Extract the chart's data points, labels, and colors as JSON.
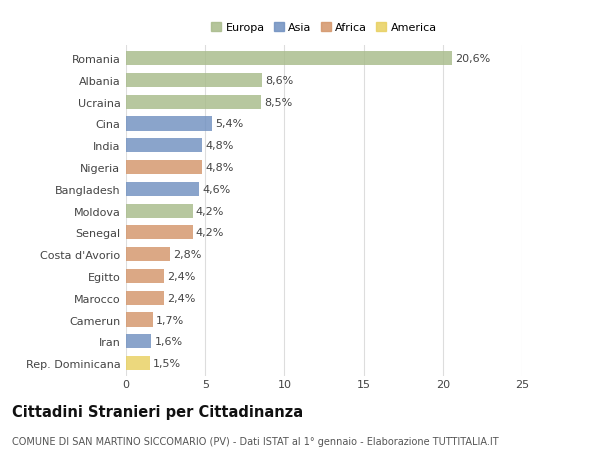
{
  "countries": [
    "Romania",
    "Albania",
    "Ucraina",
    "Cina",
    "India",
    "Nigeria",
    "Bangladesh",
    "Moldova",
    "Senegal",
    "Costa d'Avorio",
    "Egitto",
    "Marocco",
    "Camerun",
    "Iran",
    "Rep. Dominicana"
  ],
  "values": [
    20.6,
    8.6,
    8.5,
    5.4,
    4.8,
    4.8,
    4.6,
    4.2,
    4.2,
    2.8,
    2.4,
    2.4,
    1.7,
    1.6,
    1.5
  ],
  "labels": [
    "20,6%",
    "8,6%",
    "8,5%",
    "5,4%",
    "4,8%",
    "4,8%",
    "4,6%",
    "4,2%",
    "4,2%",
    "2,8%",
    "2,4%",
    "2,4%",
    "1,7%",
    "1,6%",
    "1,5%"
  ],
  "categories": [
    "Europa",
    "Europa",
    "Europa",
    "Asia",
    "Asia",
    "Africa",
    "Asia",
    "Europa",
    "Africa",
    "Africa",
    "Africa",
    "Africa",
    "Africa",
    "Asia",
    "America"
  ],
  "colors": {
    "Europa": "#a8bb8a",
    "Asia": "#7090c0",
    "Africa": "#d4956a",
    "America": "#e8d060"
  },
  "legend_order": [
    "Europa",
    "Asia",
    "Africa",
    "America"
  ],
  "title": "Cittadini Stranieri per Cittadinanza",
  "subtitle": "COMUNE DI SAN MARTINO SICCOMARIO (PV) - Dati ISTAT al 1° gennaio - Elaborazione TUTTITALIA.IT",
  "xlim": [
    0,
    25
  ],
  "xticks": [
    0,
    5,
    10,
    15,
    20,
    25
  ],
  "bg_color": "#ffffff",
  "grid_color": "#dddddd",
  "bar_height": 0.65,
  "label_fontsize": 8.0,
  "tick_fontsize": 8.0,
  "title_fontsize": 10.5,
  "subtitle_fontsize": 7.0
}
